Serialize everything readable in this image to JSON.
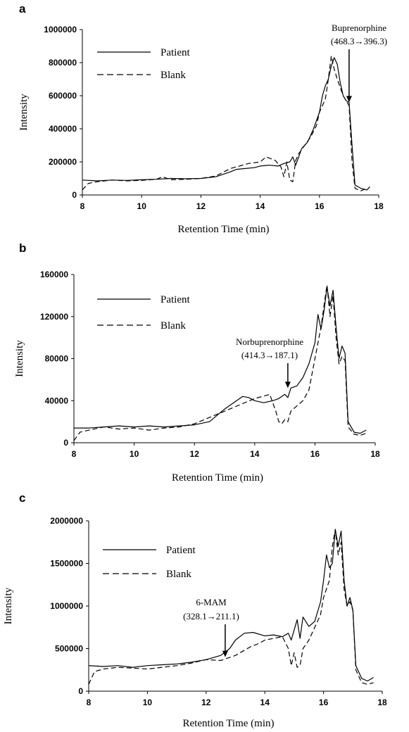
{
  "chart_data": [
    {
      "type": "line",
      "panel_label": "a",
      "xlabel": "Retention Time (min)",
      "ylabel": "Intensity",
      "xlim": [
        8,
        18
      ],
      "ylim": [
        0,
        1000000
      ],
      "x_ticks": [
        8,
        10,
        12,
        14,
        16,
        18
      ],
      "y_ticks": [
        0,
        200000,
        400000,
        600000,
        800000,
        1000000
      ],
      "legend": {
        "placement": "top-left",
        "entries": [
          "Patient",
          "Blank"
        ]
      },
      "annotation": {
        "line1": "Buprenorphine",
        "line2": "(468.3→396.3)",
        "x": 17.0,
        "y": 560000
      },
      "series": [
        {
          "name": "Patient",
          "style": "solid",
          "x": [
            8.0,
            8.5,
            9.0,
            9.5,
            10.0,
            10.5,
            11.0,
            11.5,
            12.0,
            12.5,
            13.0,
            13.2,
            13.5,
            13.8,
            14.0,
            14.3,
            14.6,
            14.8,
            15.0,
            15.1,
            15.2,
            15.4,
            15.6,
            15.8,
            16.0,
            16.1,
            16.2,
            16.3,
            16.4,
            16.5,
            16.6,
            16.7,
            16.8,
            16.9,
            17.0,
            17.1,
            17.2,
            17.4,
            17.6,
            17.7
          ],
          "y": [
            90000,
            85000,
            90000,
            88000,
            92000,
            95000,
            100000,
            98000,
            100000,
            110000,
            140000,
            155000,
            160000,
            165000,
            175000,
            180000,
            175000,
            190000,
            200000,
            230000,
            180000,
            280000,
            320000,
            400000,
            500000,
            600000,
            660000,
            700000,
            780000,
            830000,
            790000,
            680000,
            600000,
            570000,
            560000,
            300000,
            60000,
            40000,
            30000,
            50000
          ]
        },
        {
          "name": "Blank",
          "style": "dashed",
          "x": [
            8.0,
            8.2,
            8.5,
            9.0,
            9.5,
            10.0,
            10.5,
            10.7,
            11.0,
            11.5,
            12.0,
            12.5,
            13.0,
            13.3,
            13.6,
            14.0,
            14.2,
            14.5,
            14.7,
            14.8,
            14.9,
            15.0,
            15.1,
            15.2,
            15.3,
            15.5,
            15.7,
            15.9,
            16.0,
            16.2,
            16.3,
            16.4,
            16.5,
            16.6,
            16.7,
            16.8,
            16.9,
            17.0,
            17.1,
            17.2,
            17.4,
            17.6
          ],
          "y": [
            30000,
            70000,
            80000,
            90000,
            85000,
            88000,
            95000,
            110000,
            92000,
            95000,
            100000,
            115000,
            160000,
            175000,
            190000,
            200000,
            230000,
            210000,
            170000,
            110000,
            200000,
            90000,
            80000,
            210000,
            250000,
            300000,
            350000,
            420000,
            500000,
            580000,
            700000,
            840000,
            760000,
            700000,
            650000,
            600000,
            570000,
            540000,
            200000,
            40000,
            25000,
            40000
          ]
        }
      ]
    },
    {
      "type": "line",
      "panel_label": "b",
      "xlabel": "Retention Time (min)",
      "ylabel": "Intensity",
      "xlim": [
        8,
        18
      ],
      "ylim": [
        0,
        160000
      ],
      "x_ticks": [
        8,
        10,
        12,
        14,
        16,
        18
      ],
      "y_ticks": [
        0,
        40000,
        80000,
        120000,
        160000
      ],
      "legend": {
        "placement": "top-left",
        "entries": [
          "Patient",
          "Blank"
        ]
      },
      "annotation": {
        "line1": "Norbuprenorphine",
        "line2": "(414.3→187.1)",
        "x": 15.1,
        "y": 52000
      },
      "series": [
        {
          "name": "Patient",
          "style": "solid",
          "x": [
            8.0,
            8.5,
            9.0,
            9.5,
            10.0,
            10.5,
            11.0,
            11.5,
            12.0,
            12.5,
            13.0,
            13.3,
            13.6,
            13.8,
            14.0,
            14.3,
            14.6,
            14.8,
            15.0,
            15.1,
            15.2,
            15.4,
            15.6,
            15.8,
            16.0,
            16.1,
            16.2,
            16.3,
            16.4,
            16.5,
            16.6,
            16.7,
            16.8,
            16.9,
            17.0,
            17.1,
            17.3,
            17.5,
            17.7
          ],
          "y": [
            14000,
            14000,
            15000,
            16000,
            15000,
            16000,
            15000,
            16000,
            17000,
            20000,
            32000,
            38000,
            44000,
            43000,
            40000,
            38000,
            40000,
            42000,
            46000,
            43000,
            52000,
            54000,
            62000,
            75000,
            95000,
            122000,
            108000,
            125000,
            148000,
            130000,
            145000,
            110000,
            80000,
            92000,
            85000,
            20000,
            10000,
            9000,
            12000
          ]
        },
        {
          "name": "Blank",
          "style": "dashed",
          "x": [
            8.0,
            8.2,
            8.5,
            9.0,
            9.5,
            10.0,
            10.5,
            11.0,
            11.5,
            12.0,
            12.5,
            13.0,
            13.5,
            14.0,
            14.5,
            14.7,
            14.8,
            14.9,
            15.0,
            15.1,
            15.2,
            15.4,
            15.6,
            15.8,
            16.0,
            16.2,
            16.3,
            16.4,
            16.5,
            16.6,
            16.7,
            16.8,
            16.9,
            17.0,
            17.1,
            17.3,
            17.5,
            17.7
          ],
          "y": [
            2000,
            10000,
            12000,
            15000,
            13000,
            14000,
            12000,
            14000,
            15000,
            18000,
            24000,
            30000,
            36000,
            42000,
            46000,
            30000,
            20000,
            18000,
            22000,
            20000,
            30000,
            35000,
            40000,
            50000,
            80000,
            110000,
            130000,
            150000,
            120000,
            140000,
            100000,
            75000,
            82000,
            78000,
            15000,
            8000,
            7000,
            9000
          ]
        }
      ]
    },
    {
      "type": "line",
      "panel_label": "c",
      "xlabel": "Retention Time (min)",
      "ylabel": "Intensity",
      "xlim": [
        8,
        18
      ],
      "ylim": [
        0,
        2000000
      ],
      "x_ticks": [
        8,
        10,
        12,
        14,
        16,
        18
      ],
      "y_ticks": [
        0,
        500000,
        1000000,
        1500000,
        2000000
      ],
      "legend": {
        "placement": "top-left",
        "entries": [
          "Patient",
          "Blank"
        ]
      },
      "annotation": {
        "line1": "6-MAM",
        "line2": "(328.1→211.1)",
        "x": 12.65,
        "y": 400000
      },
      "series": [
        {
          "name": "Patient",
          "style": "solid",
          "x": [
            8.0,
            8.5,
            9.0,
            9.5,
            10.0,
            10.5,
            11.0,
            11.5,
            12.0,
            12.5,
            12.8,
            13.0,
            13.3,
            13.6,
            14.0,
            14.3,
            14.6,
            14.8,
            14.9,
            15.0,
            15.1,
            15.2,
            15.3,
            15.5,
            15.7,
            15.9,
            16.0,
            16.1,
            16.2,
            16.3,
            16.4,
            16.5,
            16.6,
            16.7,
            16.8,
            16.9,
            17.0,
            17.1,
            17.3,
            17.5,
            17.7
          ],
          "y": [
            300000,
            290000,
            300000,
            280000,
            300000,
            310000,
            320000,
            340000,
            370000,
            420000,
            500000,
            600000,
            680000,
            690000,
            650000,
            660000,
            640000,
            680000,
            600000,
            720000,
            840000,
            620000,
            870000,
            760000,
            820000,
            1050000,
            1300000,
            1600000,
            1450000,
            1500000,
            1900000,
            1700000,
            1880000,
            1300000,
            1000000,
            1100000,
            950000,
            300000,
            150000,
            120000,
            160000
          ]
        },
        {
          "name": "Blank",
          "style": "dashed",
          "x": [
            8.0,
            8.2,
            8.5,
            9.0,
            9.5,
            10.0,
            10.5,
            11.0,
            11.5,
            12.0,
            12.5,
            13.0,
            13.5,
            13.8,
            14.0,
            14.3,
            14.6,
            14.8,
            14.9,
            15.0,
            15.1,
            15.2,
            15.3,
            15.5,
            15.7,
            15.9,
            16.0,
            16.2,
            16.3,
            16.4,
            16.5,
            16.6,
            16.7,
            16.8,
            16.9,
            17.0,
            17.1,
            17.3,
            17.5,
            17.7
          ],
          "y": [
            80000,
            230000,
            260000,
            280000,
            270000,
            260000,
            280000,
            300000,
            330000,
            370000,
            360000,
            420000,
            520000,
            560000,
            600000,
            620000,
            640000,
            500000,
            300000,
            450000,
            280000,
            300000,
            500000,
            600000,
            750000,
            900000,
            1100000,
            1300000,
            1700000,
            1900000,
            1600000,
            1750000,
            1200000,
            1000000,
            1050000,
            950000,
            250000,
            100000,
            80000,
            100000
          ]
        }
      ]
    }
  ]
}
